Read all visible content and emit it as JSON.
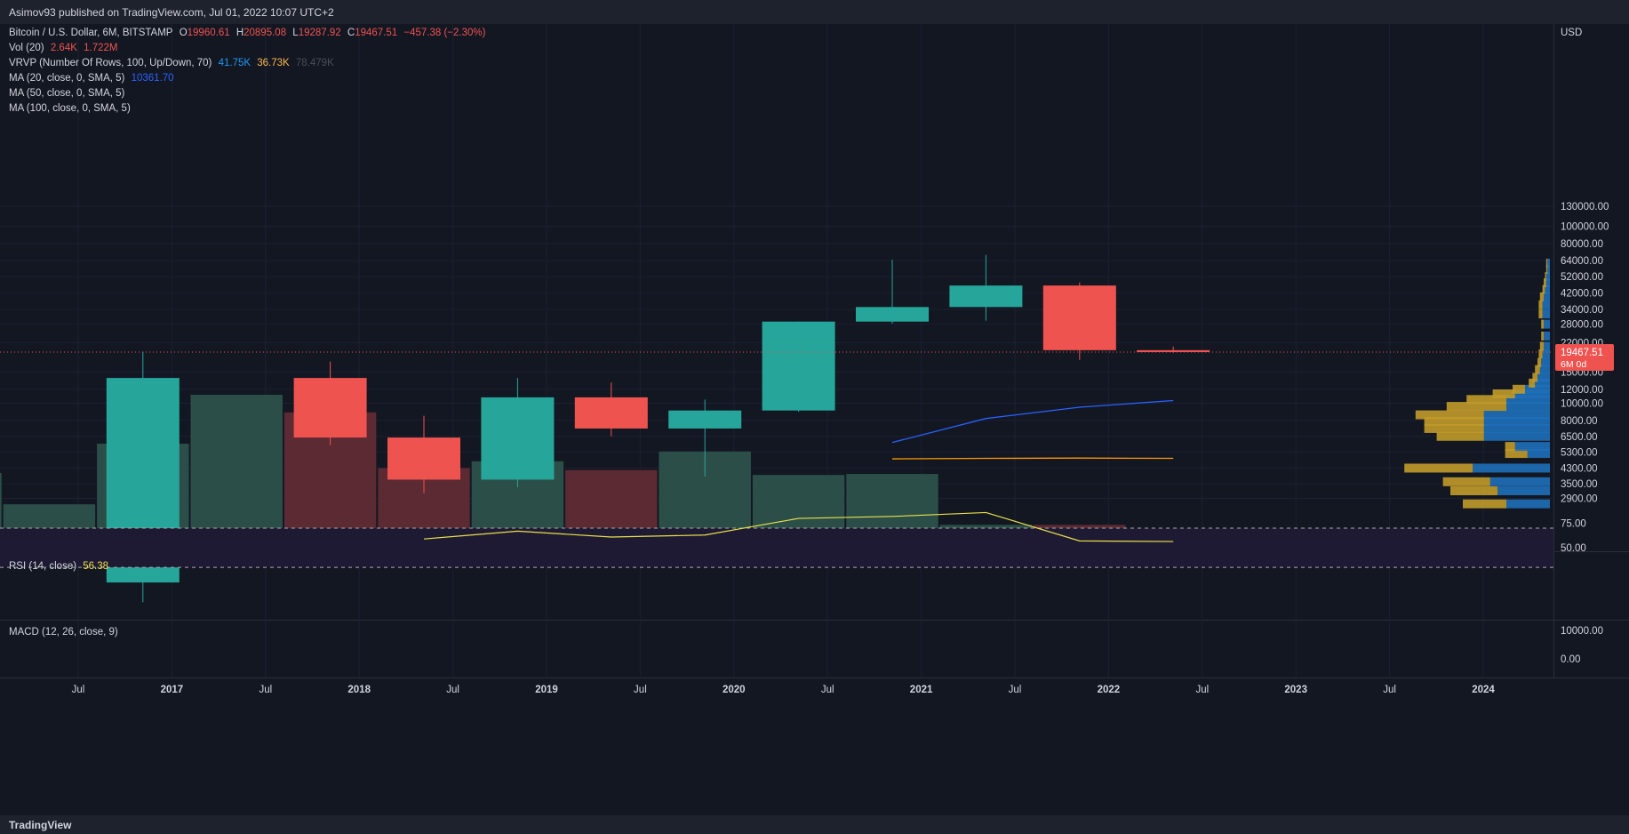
{
  "header": {
    "title": "Asimov93 published on TradingView.com, Jul 01, 2022 10:07 UTC+2"
  },
  "footer": {
    "brand": "TradingView"
  },
  "legend": {
    "symbol": "Bitcoin / U.S. Dollar, 6M, BITSTAMP",
    "o_label": "O",
    "o": "19960.61",
    "h_label": "H",
    "h": "20895.08",
    "l_label": "L",
    "l": "19287.92",
    "c_label": "C",
    "c": "19467.51",
    "chg": "−457.38 (−2.30%)",
    "vol_label": "Vol (20)",
    "vol1": "2.64K",
    "vol2": "1.722M",
    "vrvp_label": "VRVP (Number Of Rows, 100, Up/Down, 70)",
    "vrvp1": "41.75K",
    "vrvp2": "36.73K",
    "vrvp3": "78.479K",
    "ma20_label": "MA (20, close, 0, SMA, 5)",
    "ma20": "10361.70",
    "ma50_label": "MA (50, close, 0, SMA, 5)",
    "ma100_label": "MA (100, close, 0, SMA, 5)"
  },
  "rsi": {
    "label": "RSI (14, close)",
    "value": "56.38",
    "ticks": [
      "75.00",
      "50.00"
    ]
  },
  "macd": {
    "label": "MACD (12, 26, close, 9)",
    "ticks": [
      "10000.00",
      "0.00"
    ]
  },
  "price_axis": {
    "currency": "USD",
    "ticks": [
      "130000.00",
      "100000.00",
      "80000.00",
      "64000.00",
      "52000.00",
      "42000.00",
      "34000.00",
      "28000.00",
      "22000.00",
      "15000.00",
      "12000.00",
      "10000.00",
      "8000.00",
      "6500.00",
      "5300.00",
      "4300.00",
      "3500.00",
      "2900.00"
    ],
    "last_price": "19467.51",
    "last_sub": "6M 0d"
  },
  "colors": {
    "up": "#26a69a",
    "down": "#ef5350",
    "bg": "#131722",
    "grid": "#1e222d",
    "text": "#d1d4dc",
    "ma20": "#2962ff",
    "ma50": "#ff9800",
    "rsi": "#e8e04a",
    "vol_up": "#2b4f48",
    "vol_down": "#5b2a32",
    "vp_up": "#1e6fb8",
    "vp_down": "#c19a2a"
  },
  "chart_data": {
    "type": "candlestick",
    "interval": "6M",
    "x_ticks": [
      "Jul",
      "2017",
      "Jul",
      "2018",
      "Jul",
      "2019",
      "Jul",
      "2020",
      "Jul",
      "2021",
      "Jul",
      "2022",
      "Jul",
      "2023",
      "Jul",
      "2024"
    ],
    "price_scale": "log",
    "candles": [
      {
        "period": "2017-01",
        "open": 970,
        "high": 19600,
        "low": 750,
        "close": 13900
      },
      {
        "period": "2018-01",
        "open": 13900,
        "high": 17200,
        "low": 5800,
        "close": 6400
      },
      {
        "period": "2018-07",
        "open": 6400,
        "high": 8500,
        "low": 3100,
        "close": 3700
      },
      {
        "period": "2019-01",
        "open": 3700,
        "high": 13900,
        "low": 3350,
        "close": 10800
      },
      {
        "period": "2019-07",
        "open": 10800,
        "high": 13100,
        "low": 6500,
        "close": 7200
      },
      {
        "period": "2020-01",
        "open": 7200,
        "high": 10500,
        "low": 3850,
        "close": 9100
      },
      {
        "period": "2020-07",
        "open": 9100,
        "high": 29000,
        "low": 8950,
        "close": 28950
      },
      {
        "period": "2021-01",
        "open": 28950,
        "high": 64900,
        "low": 28200,
        "close": 35000
      },
      {
        "period": "2021-07",
        "open": 35000,
        "high": 69000,
        "low": 29300,
        "close": 46300
      },
      {
        "period": "2022-01",
        "open": 46300,
        "high": 48200,
        "low": 17600,
        "close": 19960
      },
      {
        "period": "2022-07",
        "open": 19960,
        "high": 20895,
        "low": 19288,
        "close": 19467
      }
    ],
    "volume": [
      {
        "period": "2016-01",
        "value": 0.8,
        "dir": "up"
      },
      {
        "period": "2016-07",
        "value": 0.48,
        "dir": "up"
      },
      {
        "period": "2017-01",
        "value": 1.1,
        "dir": "up"
      },
      {
        "period": "2017-07",
        "value": 1.6,
        "dir": "up"
      },
      {
        "period": "2018-01",
        "value": 1.42,
        "dir": "down"
      },
      {
        "period": "2018-07",
        "value": 0.85,
        "dir": "down"
      },
      {
        "period": "2019-01",
        "value": 0.92,
        "dir": "up"
      },
      {
        "period": "2019-07",
        "value": 0.83,
        "dir": "down"
      },
      {
        "period": "2020-01",
        "value": 1.02,
        "dir": "up"
      },
      {
        "period": "2020-07",
        "value": 0.78,
        "dir": "up"
      },
      {
        "period": "2021-01",
        "value": 0.79,
        "dir": "up"
      },
      {
        "period": "2021-07",
        "value": 0.27,
        "dir": "up"
      },
      {
        "period": "2022-01",
        "value": 0.27,
        "dir": "down"
      },
      {
        "period": "2022-07",
        "value": 0.0026,
        "dir": "down"
      }
    ],
    "ma20": [
      {
        "period": "2021-01",
        "value": 6000
      },
      {
        "period": "2021-07",
        "value": 8200
      },
      {
        "period": "2022-01",
        "value": 9500
      },
      {
        "period": "2022-07",
        "value": 10362
      }
    ],
    "ma50": [
      {
        "period": "2021-01",
        "value": 4850
      },
      {
        "period": "2021-07",
        "value": 4880
      },
      {
        "period": "2022-01",
        "value": 4900
      },
      {
        "period": "2022-07",
        "value": 4880
      }
    ],
    "rsi": [
      {
        "period": "2018-07",
        "value": 59
      },
      {
        "period": "2019-01",
        "value": 67
      },
      {
        "period": "2019-07",
        "value": 61
      },
      {
        "period": "2020-01",
        "value": 63
      },
      {
        "period": "2020-07",
        "value": 80
      },
      {
        "period": "2021-01",
        "value": 82
      },
      {
        "period": "2021-07",
        "value": 86
      },
      {
        "period": "2022-01",
        "value": 57
      },
      {
        "period": "2022-07",
        "value": 56.38
      }
    ],
    "volume_profile": [
      {
        "price": 2700,
        "up": 0.35,
        "down": 0.35
      },
      {
        "price": 3200,
        "up": 0.42,
        "down": 0.38
      },
      {
        "price": 3600,
        "up": 0.48,
        "down": 0.38
      },
      {
        "price": 4300,
        "up": 0.62,
        "down": 0.55
      },
      {
        "price": 5200,
        "up": 0.18,
        "down": 0.18
      },
      {
        "price": 5700,
        "up": 0.28,
        "down": 0.08
      },
      {
        "price": 6500,
        "up": 0.53,
        "down": 0.38
      },
      {
        "price": 7200,
        "up": 0.53,
        "down": 0.48
      },
      {
        "price": 7900,
        "up": 0.53,
        "down": 0.48
      },
      {
        "price": 8600,
        "up": 0.53,
        "down": 0.55
      },
      {
        "price": 9600,
        "up": 0.35,
        "down": 0.48
      },
      {
        "price": 10500,
        "up": 0.35,
        "down": 0.32
      },
      {
        "price": 11300,
        "up": 0.28,
        "down": 0.18
      },
      {
        "price": 12000,
        "up": 0.2,
        "down": 0.1
      },
      {
        "price": 13000,
        "up": 0.12,
        "down": 0.05
      },
      {
        "price": 14000,
        "up": 0.1,
        "down": 0.04
      },
      {
        "price": 15500,
        "up": 0.08,
        "down": 0.04
      },
      {
        "price": 17000,
        "up": 0.07,
        "down": 0.03
      },
      {
        "price": 19000,
        "up": 0.06,
        "down": 0.03
      },
      {
        "price": 21000,
        "up": 0.05,
        "down": 0.03
      },
      {
        "price": 24000,
        "up": 0.05,
        "down": 0.02
      },
      {
        "price": 28000,
        "up": 0.05,
        "down": 0.02
      },
      {
        "price": 32000,
        "up": 0.06,
        "down": 0.03
      },
      {
        "price": 36000,
        "up": 0.06,
        "down": 0.03
      },
      {
        "price": 40000,
        "up": 0.05,
        "down": 0.03
      },
      {
        "price": 44000,
        "up": 0.04,
        "down": 0.02
      },
      {
        "price": 48000,
        "up": 0.03,
        "down": 0.02
      },
      {
        "price": 52000,
        "up": 0.03,
        "down": 0.01
      },
      {
        "price": 57000,
        "up": 0.02,
        "down": 0.01
      },
      {
        "price": 62000,
        "up": 0.02,
        "down": 0.01
      }
    ]
  }
}
